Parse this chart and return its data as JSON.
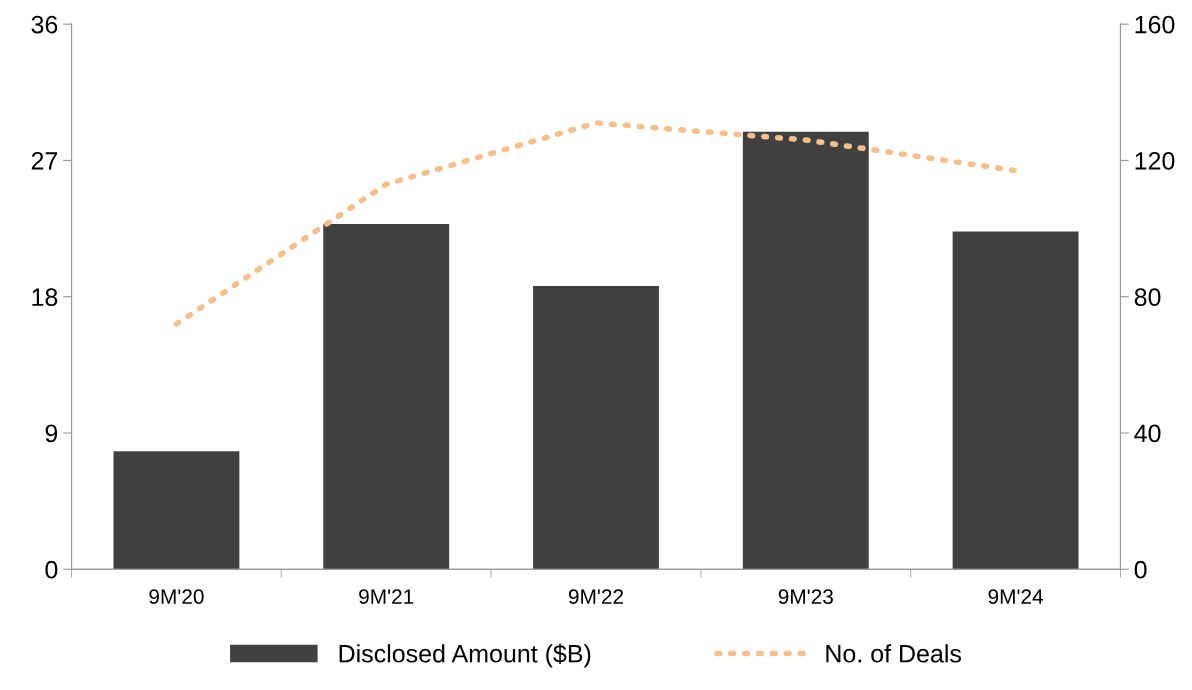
{
  "chart_data": {
    "type": "bar",
    "categories": [
      "9M'20",
      "9M'21",
      "9M'22",
      "9M'23",
      "9M'24"
    ],
    "series": [
      {
        "name": "Disclosed Amount ($B)",
        "color": "#404040",
        "values": [
          7.8,
          22.8,
          18.7,
          28.9,
          22.3
        ]
      },
      {
        "name": "No. of Deals",
        "type": "line",
        "axis": "y2",
        "color": "#f6c08c",
        "line_style": "dotted",
        "values": [
          72,
          113,
          131,
          126,
          117
        ]
      }
    ],
    "ylim": [
      0,
      36
    ],
    "yticks": [
      0,
      9,
      18,
      27,
      36
    ],
    "y2lim": [
      0,
      160
    ],
    "y2ticks": [
      0,
      40,
      80,
      120,
      160
    ],
    "grid": false,
    "legend": "bottom"
  }
}
